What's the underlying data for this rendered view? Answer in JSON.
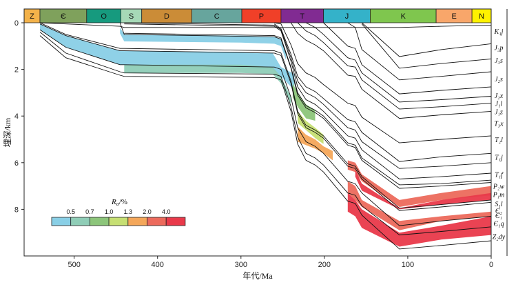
{
  "chart_data": {
    "type": "burial-history",
    "xlabel": "年代/Ma",
    "ylabel": "埋深/km",
    "xlim": [
      560,
      0
    ],
    "ylim": [
      0,
      10
    ],
    "xticks": [
      500,
      400,
      300,
      200,
      100,
      0
    ],
    "yticks": [
      0,
      2,
      4,
      6,
      8
    ],
    "periods": [
      {
        "name": "Z",
        "start": 560,
        "end": 541,
        "color": "#f3b24a"
      },
      {
        "name": "Є",
        "start": 541,
        "end": 485,
        "color": "#7fa15c"
      },
      {
        "name": "O",
        "start": 485,
        "end": 444,
        "color": "#169a7e"
      },
      {
        "name": "S",
        "start": 444,
        "end": 419,
        "color": "#a6d9b7"
      },
      {
        "name": "D",
        "start": 419,
        "end": 359,
        "color": "#cb8c37"
      },
      {
        "name": "C",
        "start": 359,
        "end": 299,
        "color": "#67a59d"
      },
      {
        "name": "P",
        "start": 299,
        "end": 252,
        "color": "#f04028"
      },
      {
        "name": "T",
        "start": 252,
        "end": 201,
        "color": "#812b92"
      },
      {
        "name": "J",
        "start": 201,
        "end": 145,
        "color": "#34b2c9"
      },
      {
        "name": "K",
        "start": 145,
        "end": 66,
        "color": "#7fc64e"
      },
      {
        "name": "E",
        "start": 66,
        "end": 23,
        "color": "#f8a66a"
      },
      {
        "name": "N",
        "start": 23,
        "end": 0,
        "color": "#fff200"
      }
    ],
    "formations": [
      {
        "label": "K₁j",
        "depth": 0.35
      },
      {
        "label": "J₃p",
        "depth": 1.05
      },
      {
        "label": "J₃s",
        "depth": 1.6
      },
      {
        "label": "J₂s",
        "depth": 2.4
      },
      {
        "label": "J₂x",
        "depth": 3.1
      },
      {
        "label": "J₁l",
        "depth": 3.45
      },
      {
        "label": "J₁z",
        "depth": 3.8
      },
      {
        "label": "T₃x",
        "depth": 4.3
      },
      {
        "label": "T₂l",
        "depth": 5.0
      },
      {
        "label": "T₁j",
        "depth": 5.75
      },
      {
        "label": "T₁f",
        "depth": 6.5
      },
      {
        "label": "P₂w",
        "depth": 7.0
      },
      {
        "label": "P₁m",
        "depth": 7.35
      },
      {
        "label": "S₁l",
        "depth": 7.75
      },
      {
        "label": "Є₂",
        "depth": 8.05
      },
      {
        "label": "Є₁",
        "depth": 8.25
      },
      {
        "label": "Є₁q",
        "depth": 8.6
      },
      {
        "label": "Z₂dy",
        "depth": 9.15
      }
    ],
    "time_nodes": [
      541,
      510,
      445,
      440,
      260,
      252,
      240,
      232,
      222,
      211,
      201,
      172,
      163,
      155,
      110,
      60,
      0
    ],
    "horizons": [
      [
        0,
        0.05,
        0.15,
        0.2,
        0.2,
        0.2,
        0.2,
        0.2,
        0.2,
        0.2,
        0.2,
        0.2,
        0.2,
        0.2,
        0.2,
        0.15,
        0.1
      ],
      [
        null,
        null,
        null,
        null,
        null,
        null,
        null,
        null,
        null,
        null,
        null,
        null,
        null,
        0,
        1.45,
        1.15,
        0.9
      ],
      [
        null,
        null,
        null,
        null,
        null,
        null,
        null,
        null,
        null,
        null,
        null,
        null,
        null,
        0.05,
        1.95,
        1.75,
        1.55
      ],
      [
        null,
        null,
        null,
        null,
        null,
        null,
        null,
        null,
        null,
        null,
        null,
        0,
        0.2,
        1.15,
        2.45,
        2.3,
        2.1
      ],
      [
        null,
        null,
        null,
        null,
        null,
        null,
        null,
        null,
        null,
        null,
        0,
        1.0,
        1.1,
        1.8,
        3.05,
        2.9,
        2.75
      ],
      [
        null,
        null,
        null,
        null,
        null,
        null,
        null,
        null,
        0,
        0.2,
        0.5,
        1.5,
        1.6,
        2.15,
        3.4,
        3.3,
        3.15
      ],
      [
        null,
        null,
        null,
        null,
        null,
        null,
        null,
        0,
        0.35,
        0.55,
        0.85,
        1.85,
        1.9,
        2.45,
        3.7,
        3.6,
        3.45
      ],
      [
        null,
        null,
        null,
        null,
        null,
        null,
        0,
        0.45,
        0.75,
        0.95,
        1.2,
        2.25,
        2.3,
        2.85,
        4.1,
        3.95,
        3.8
      ],
      [
        null,
        null,
        null,
        null,
        0,
        0.05,
        0.95,
        1.75,
        2.15,
        2.35,
        2.65,
        3.45,
        3.55,
        4.05,
        5.15,
        5.0,
        4.85
      ],
      [
        null,
        null,
        null,
        null,
        0.05,
        0.25,
        1.35,
        2.3,
        2.75,
        2.95,
        3.25,
        4.15,
        4.25,
        4.7,
        5.95,
        5.75,
        5.6
      ],
      [
        null,
        null,
        null,
        0,
        0.1,
        0.3,
        1.5,
        2.5,
        3.0,
        3.2,
        3.5,
        4.5,
        4.6,
        5.1,
        6.25,
        6.15,
        6.0
      ],
      [
        null,
        null,
        null,
        0.05,
        0.15,
        0.35,
        1.65,
        2.75,
        3.3,
        3.5,
        3.8,
        4.85,
        4.95,
        5.45,
        6.7,
        6.6,
        6.45
      ],
      [
        null,
        null,
        null,
        0.45,
        0.55,
        0.65,
        1.9,
        3.0,
        3.55,
        3.75,
        4.0,
        5.15,
        5.25,
        5.8,
        6.95,
        6.9,
        6.75
      ],
      [
        null,
        null,
        0,
        0.5,
        0.6,
        0.7,
        1.95,
        3.1,
        3.65,
        3.85,
        4.1,
        5.25,
        5.35,
        5.9,
        7.1,
        7.0,
        6.85
      ],
      [
        0,
        0.5,
        1.1,
        1.1,
        1.2,
        1.3,
        2.5,
        3.8,
        4.4,
        4.6,
        4.85,
        6.05,
        6.15,
        6.6,
        7.95,
        7.8,
        7.6
      ],
      [
        0.05,
        0.55,
        1.2,
        1.2,
        1.3,
        1.4,
        2.6,
        3.9,
        4.5,
        4.7,
        4.95,
        6.15,
        6.25,
        6.7,
        8.05,
        7.9,
        7.7
      ],
      [
        0.3,
        1.05,
        1.8,
        1.8,
        1.9,
        2.0,
        3.2,
        4.5,
        5.1,
        5.3,
        5.6,
        6.8,
        6.9,
        7.3,
        8.7,
        8.5,
        8.3
      ],
      [
        0.4,
        1.3,
        2.1,
        2.15,
        2.2,
        2.3,
        3.6,
        4.9,
        5.6,
        5.8,
        6.1,
        7.3,
        7.4,
        7.85,
        9.1,
        8.95,
        8.75
      ],
      [
        0.55,
        1.5,
        2.25,
        2.3,
        2.35,
        2.45,
        3.8,
        5.2,
        5.9,
        6.1,
        6.4,
        7.65,
        7.75,
        8.25,
        9.7,
        9.55,
        9.35
      ]
    ],
    "maturity_fills": [
      {
        "class": 0,
        "top": [
          [
            541,
            0.05
          ],
          [
            510,
            0.55
          ],
          [
            445,
            1.2
          ],
          [
            440,
            1.2
          ],
          [
            300,
            1.25
          ],
          [
            262,
            1.3
          ],
          [
            252,
            1.9
          ],
          [
            236,
            2.2
          ]
        ],
        "bottom": [
          [
            236,
            2.9
          ],
          [
            252,
            2.3
          ],
          [
            262,
            2.0
          ],
          [
            300,
            1.95
          ],
          [
            440,
            1.8
          ],
          [
            445,
            1.8
          ],
          [
            510,
            1.05
          ],
          [
            541,
            0.3
          ]
        ]
      },
      {
        "class": 0,
        "top": [
          [
            445,
            0.2
          ],
          [
            440,
            0.5
          ],
          [
            300,
            0.55
          ],
          [
            260,
            0.6
          ],
          [
            252,
            0.7
          ],
          [
            246,
            1.3
          ]
        ],
        "bottom": [
          [
            246,
            1.6
          ],
          [
            252,
            1.0
          ],
          [
            260,
            0.9
          ],
          [
            300,
            0.85
          ],
          [
            440,
            0.8
          ],
          [
            445,
            0.45
          ]
        ]
      },
      {
        "class": 1,
        "top": [
          [
            440,
            1.8
          ],
          [
            300,
            1.8
          ],
          [
            262,
            1.9
          ],
          [
            252,
            2.3
          ],
          [
            240,
            3.2
          ]
        ],
        "bottom": [
          [
            240,
            3.5
          ],
          [
            252,
            2.6
          ],
          [
            262,
            2.2
          ],
          [
            300,
            2.15
          ],
          [
            440,
            2.15
          ]
        ]
      },
      {
        "class": 2,
        "top": [
          [
            238,
            2.6
          ],
          [
            232,
            3.0
          ],
          [
            222,
            3.5
          ],
          [
            211,
            3.75
          ]
        ],
        "bottom": [
          [
            211,
            4.2
          ],
          [
            222,
            4.1
          ],
          [
            232,
            3.6
          ],
          [
            238,
            3.2
          ]
        ]
      },
      {
        "class": 3,
        "top": [
          [
            232,
            3.8
          ],
          [
            222,
            4.2
          ],
          [
            211,
            4.5
          ],
          [
            201,
            4.8
          ]
        ],
        "bottom": [
          [
            201,
            5.2
          ],
          [
            211,
            4.95
          ],
          [
            222,
            4.6
          ],
          [
            232,
            4.3
          ]
        ]
      },
      {
        "class": 4,
        "top": [
          [
            232,
            4.45
          ],
          [
            222,
            4.8
          ],
          [
            211,
            5.0
          ],
          [
            201,
            5.3
          ],
          [
            190,
            5.5
          ]
        ],
        "bottom": [
          [
            190,
            5.9
          ],
          [
            201,
            5.6
          ],
          [
            211,
            5.4
          ],
          [
            222,
            5.25
          ],
          [
            232,
            5.1
          ]
        ]
      },
      {
        "class": 5,
        "top": [
          [
            172,
            5.9
          ],
          [
            163,
            6.0
          ],
          [
            155,
            6.5
          ],
          [
            110,
            7.6
          ],
          [
            60,
            7.3
          ],
          [
            0,
            7.0
          ]
        ],
        "bottom": [
          [
            0,
            7.4
          ],
          [
            60,
            7.6
          ],
          [
            110,
            7.9
          ],
          [
            155,
            6.8
          ],
          [
            163,
            6.4
          ],
          [
            172,
            6.3
          ]
        ]
      },
      {
        "class": 6,
        "top": [
          [
            163,
            6.3
          ],
          [
            155,
            6.9
          ],
          [
            110,
            7.95
          ],
          [
            60,
            7.6
          ],
          [
            0,
            7.3
          ]
        ],
        "bottom": [
          [
            0,
            7.6
          ],
          [
            60,
            7.8
          ],
          [
            110,
            8.0
          ],
          [
            155,
            7.2
          ],
          [
            163,
            6.6
          ]
        ]
      },
      {
        "class": 6,
        "top": [
          [
            172,
            7.3
          ],
          [
            163,
            7.6
          ],
          [
            155,
            8.0
          ],
          [
            110,
            9.0
          ],
          [
            60,
            8.7
          ],
          [
            0,
            8.3
          ]
        ],
        "bottom": [
          [
            0,
            9.1
          ],
          [
            60,
            9.3
          ],
          [
            110,
            9.6
          ],
          [
            155,
            8.8
          ],
          [
            163,
            8.3
          ],
          [
            172,
            8.1
          ]
        ]
      },
      {
        "class": 5,
        "top": [
          [
            172,
            6.8
          ],
          [
            163,
            7.0
          ],
          [
            155,
            7.6
          ],
          [
            110,
            8.5
          ],
          [
            60,
            8.3
          ],
          [
            0,
            8.1
          ]
        ],
        "bottom": [
          [
            0,
            8.3
          ],
          [
            60,
            8.5
          ],
          [
            110,
            8.9
          ],
          [
            155,
            7.9
          ],
          [
            163,
            7.6
          ],
          [
            172,
            7.3
          ]
        ]
      }
    ],
    "legend": {
      "title": "Ro/%",
      "title_main": "R",
      "title_sub": "o",
      "title_unit": "/%",
      "thresholds": [
        "0.5",
        "0.7",
        "1.0",
        "1.3",
        "2.0",
        "4.0"
      ],
      "colors": [
        "#89cfe6",
        "#8fcdb7",
        "#8cc57a",
        "#c6df73",
        "#f4a75a",
        "#ec6a5c",
        "#e9394a"
      ]
    }
  }
}
